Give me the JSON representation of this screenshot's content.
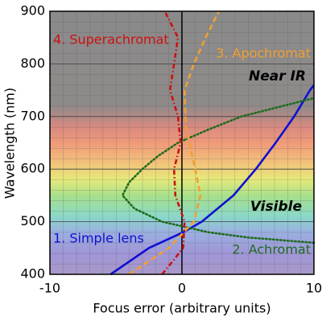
{
  "chart_data": {
    "type": "line",
    "x_label": "Focus error (arbitrary units)",
    "y_label": "Wavelength (nm)",
    "xlim": [
      -10,
      10
    ],
    "xticks": [
      -10,
      0,
      10
    ],
    "ylim": [
      400,
      900
    ],
    "yticks": [
      400,
      500,
      600,
      700,
      800,
      900
    ],
    "grid": true,
    "annotations": [
      "Near IR",
      "Visible"
    ],
    "series": [
      {
        "name": "1. Simple lens",
        "color": "#1010d0",
        "style": "solid",
        "x": [
          -5.4,
          -2.5,
          0.1,
          1.5,
          3.9,
          5.6,
          7.1,
          8.5,
          9.7,
          10
        ],
        "y": [
          400,
          450,
          480,
          500,
          550,
          600,
          650,
          700,
          750,
          760
        ]
      },
      {
        "name": "2. Achromat",
        "color": "#1e6b1e",
        "style": "dotted",
        "x": [
          10,
          5,
          2,
          -1.5,
          -3.6,
          -4.5,
          -4,
          -3,
          -1.8,
          -0.3,
          2,
          4.5,
          10
        ],
        "y": [
          460,
          470,
          480,
          500,
          525,
          550,
          575,
          600,
          625,
          650,
          675,
          700,
          735
        ]
      },
      {
        "name": "3. Apochromat",
        "color": "#f0a030",
        "style": "dashed",
        "x": [
          -4,
          -1,
          0.9,
          1.4,
          1,
          0.3,
          0.2,
          0.9,
          1.8,
          2.8
        ],
        "y": [
          400,
          450,
          500,
          550,
          600,
          680,
          750,
          800,
          850,
          900
        ]
      },
      {
        "name": "4. Superachromat",
        "color": "#cc1111",
        "style": "dashdot",
        "x": [
          -1.5,
          0.1,
          0.2,
          -0.5,
          -0.6,
          -0.1,
          -0.3,
          -0.9,
          -0.6,
          -0.3,
          -1.3
        ],
        "y": [
          400,
          450,
          500,
          550,
          600,
          650,
          700,
          750,
          800,
          850,
          900
        ]
      }
    ]
  }
}
